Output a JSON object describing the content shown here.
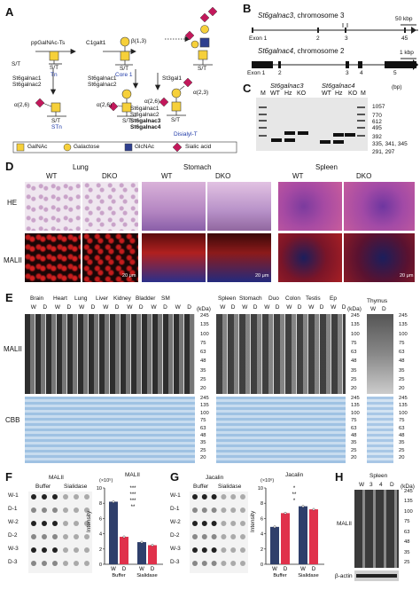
{
  "panels": {
    "A": "A",
    "B": "B",
    "C": "C",
    "D": "D",
    "E": "E",
    "F": "F",
    "G": "G",
    "H": "H"
  },
  "a": {
    "ppgalnac": "ppGalNAc-Ts",
    "c1galt1": "C1galt1",
    "st": "S/T",
    "tn": "Tn",
    "core1": "Core 1",
    "beta13": "β(1,3)",
    "stn": "STn",
    "sialylt": "Sialyl-T",
    "disialylt": "Disialyl-T",
    "a26": "α(2,6)",
    "a23": "α(2,3)",
    "enz_stn": [
      "St6galnac1",
      "St6galnac2"
    ],
    "enz_st_left": [
      "St6galnac1",
      "St6galnac2"
    ],
    "st3gal1": "St3gal1",
    "enz_di": [
      "St6galnac1",
      "St6galnac2",
      "St6galnac3",
      "St6galnac4"
    ],
    "legend": [
      "GalNAc",
      "Galactose",
      "GlcNAc",
      "Sialic acid"
    ]
  },
  "b": {
    "gene3": "St6galnac3",
    "chr3": ", chromosome 3",
    "gene4": "St6galnac4",
    "chr4": ", chromosome 2",
    "scale3": "50 kbp",
    "scale4": "1 kbp",
    "exons3": [
      "Exon 1",
      "2",
      "3",
      "4",
      "5"
    ],
    "exons4": [
      "Exon 1",
      "2",
      "3",
      "4",
      "5"
    ]
  },
  "c": {
    "g3": "St6galnac3",
    "g4": "St6galnac4",
    "lanes": [
      "M",
      "WT",
      "Hz",
      "KO",
      "WT",
      "Hz",
      "KO",
      "M"
    ],
    "unit": "(bp)",
    "markers": [
      "1057",
      "770",
      "612",
      "495",
      "392",
      "335, 341, 345",
      "291, 297"
    ]
  },
  "d": {
    "tissues": [
      "Lung",
      "Stomach",
      "Spleen"
    ],
    "wt": "WT",
    "dko": "DKO",
    "rows": [
      "HE",
      "MALII"
    ],
    "scalebar": "20 μm"
  },
  "e": {
    "tissues1": [
      "Brain",
      "Heart",
      "Lung",
      "Liver",
      "Kidney",
      "Bladder",
      "SM"
    ],
    "tissues2": [
      "Spleen",
      "Stomach",
      "Duo",
      "Colon",
      "Testis",
      "Ep"
    ],
    "thymus": "Thymus",
    "wd": [
      "W",
      "D"
    ],
    "rows": [
      "MALII",
      "CBB"
    ],
    "kda": "(kDa)",
    "mw": [
      "245",
      "135",
      "100",
      "75",
      "63",
      "48",
      "35",
      "25",
      "20"
    ]
  },
  "f": {
    "lectin": "MALII",
    "buffer": "Buffer",
    "sialidase": "Sialidase",
    "rowlabels": [
      "W-1",
      "D-1",
      "W-2",
      "D-2",
      "W-3",
      "D-3"
    ],
    "ylabel": "Intensity",
    "exp": "(×10⁵)",
    "sig": [
      "***",
      "***",
      "***",
      "**"
    ]
  },
  "g": {
    "lectin": "Jacalin",
    "buffer": "Buffer",
    "sialidase": "Sialidase",
    "rowlabels": [
      "W-1",
      "D-1",
      "W-2",
      "D-2",
      "W-3",
      "D-3"
    ],
    "ylabel": "Intensity",
    "exp": "(×10⁶)",
    "sig": [
      "*",
      "**",
      "*"
    ]
  },
  "h": {
    "tissue": "Spleen",
    "lanes": [
      "W",
      "3",
      "4",
      "D"
    ],
    "kda": "(kDa)",
    "rows": [
      "MALII",
      "β-actin"
    ],
    "mw": [
      "245",
      "135",
      "100",
      "75",
      "63",
      "48",
      "35",
      "25"
    ]
  },
  "chart_data": [
    {
      "type": "bar",
      "title": "MALII",
      "categories": [
        "W",
        "D",
        "W",
        "D"
      ],
      "groups": [
        "Buffer",
        "Buffer",
        "Sialidase",
        "Sialidase"
      ],
      "values": [
        8.2,
        3.6,
        2.9,
        2.5
      ],
      "ylabel": "Intensity (×10⁵)",
      "ylim": [
        0,
        10
      ],
      "yticks": [
        0,
        2,
        4,
        6,
        8,
        10
      ],
      "colors": [
        "#2f3f6b",
        "#e0314b",
        "#2f3f6b",
        "#e0314b"
      ]
    },
    {
      "type": "bar",
      "title": "Jacalin",
      "categories": [
        "W",
        "D",
        "W",
        "D"
      ],
      "groups": [
        "Buffer",
        "Buffer",
        "Sialidase",
        "Sialidase"
      ],
      "values": [
        4.9,
        6.7,
        7.6,
        7.2
      ],
      "ylabel": "Intensity (×10⁶)",
      "ylim": [
        0,
        10
      ],
      "yticks": [
        0,
        2,
        4,
        6,
        8,
        10
      ],
      "colors": [
        "#2f3f6b",
        "#e0314b",
        "#2f3f6b",
        "#e0314b"
      ]
    }
  ]
}
